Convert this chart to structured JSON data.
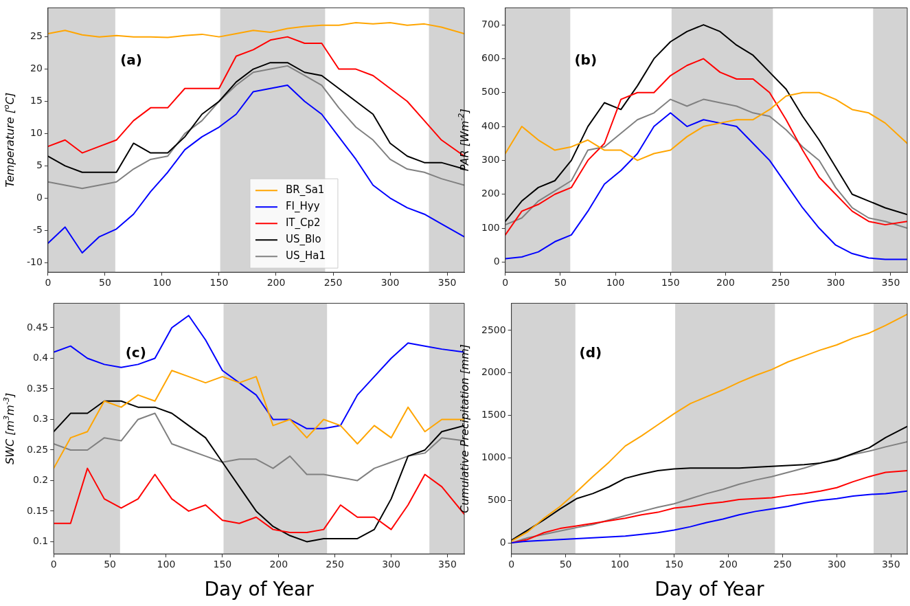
{
  "chart_data": [
    {
      "type": "line",
      "ylabel": "Temperature [$^{o}$C]",
      "annotations": [
        "(a)"
      ],
      "legend": "bottom",
      "grid": false,
      "marker": "none",
      "line_style": "solid",
      "x": [
        0,
        15,
        30,
        45,
        60,
        75,
        90,
        105,
        120,
        135,
        150,
        165,
        180,
        195,
        210,
        225,
        240,
        255,
        270,
        285,
        300,
        315,
        330,
        345,
        365
      ],
      "xlim": [
        0,
        365
      ],
      "xticks": [
        0,
        50,
        100,
        150,
        200,
        250,
        300,
        350
      ],
      "ylim": [
        -11.5,
        29.5
      ],
      "yticks": [
        -10,
        -5,
        0,
        5,
        10,
        15,
        20,
        25
      ],
      "bands": [
        {
          "axis": "x",
          "from": 0,
          "to": 59,
          "color": "#d3d3d3"
        },
        {
          "axis": "x",
          "from": 151,
          "to": 243,
          "color": "#d3d3d3"
        },
        {
          "axis": "x",
          "from": 334,
          "to": 365,
          "color": "#d3d3d3"
        }
      ],
      "series": [
        {
          "name": "BR_Sa1",
          "color": "#ffa500",
          "values": [
            25.5,
            26,
            25.3,
            25,
            25.2,
            25,
            25,
            24.9,
            25.2,
            25.4,
            25,
            25.5,
            26,
            25.7,
            26.3,
            26.6,
            26.8,
            26.8,
            27.2,
            27,
            27.2,
            26.8,
            27,
            26.5,
            25.5
          ]
        },
        {
          "name": "FI_Hyy",
          "color": "#0000ff",
          "values": [
            -7,
            -4.5,
            -8.5,
            -6,
            -4.8,
            -2.5,
            1,
            4,
            7.5,
            9.5,
            11,
            13,
            16.5,
            17,
            17.5,
            15,
            13,
            9.5,
            6,
            2,
            0,
            -1.5,
            -2.5,
            -4,
            -6
          ]
        },
        {
          "name": "IT_Cp2",
          "color": "#ff0000",
          "values": [
            8,
            9,
            7,
            8,
            9,
            12,
            14,
            14,
            17,
            17,
            17,
            22,
            23,
            24.5,
            25,
            24,
            24,
            20,
            20,
            19,
            17,
            15,
            12,
            9,
            6.5
          ]
        },
        {
          "name": "US_Blo",
          "color": "#000000",
          "values": [
            6.5,
            5,
            4,
            4,
            4,
            8.5,
            7,
            7,
            9.5,
            13,
            15,
            18,
            20,
            21,
            21,
            19.5,
            19,
            17,
            15,
            13,
            8.5,
            6.5,
            5.5,
            5.5,
            4.5
          ]
        },
        {
          "name": "US_Ha1",
          "color": "#808080",
          "values": [
            2.5,
            2,
            1.5,
            2,
            2.5,
            4.5,
            6,
            6.5,
            10,
            12,
            15,
            17.5,
            19.5,
            20,
            20.5,
            19,
            17.5,
            14,
            11,
            9,
            6,
            4.5,
            4,
            3,
            2
          ]
        }
      ]
    },
    {
      "type": "line",
      "ylabel": "PAR [Wm$^{-2}$]",
      "annotations": [
        "(b)"
      ],
      "grid": false,
      "marker": "none",
      "line_style": "solid",
      "x": [
        0,
        15,
        30,
        45,
        60,
        75,
        90,
        105,
        120,
        135,
        150,
        165,
        180,
        195,
        210,
        225,
        240,
        255,
        270,
        285,
        300,
        315,
        330,
        345,
        365
      ],
      "xlim": [
        0,
        365
      ],
      "xticks": [
        0,
        50,
        100,
        150,
        200,
        250,
        300,
        350
      ],
      "ylim": [
        -30,
        750
      ],
      "yticks": [
        0,
        100,
        200,
        300,
        400,
        500,
        600,
        700
      ],
      "bands": [
        {
          "axis": "x",
          "from": 0,
          "to": 59,
          "color": "#d3d3d3"
        },
        {
          "axis": "x",
          "from": 151,
          "to": 243,
          "color": "#d3d3d3"
        },
        {
          "axis": "x",
          "from": 334,
          "to": 365,
          "color": "#d3d3d3"
        }
      ],
      "series": [
        {
          "color": "#ffa500",
          "values": [
            320,
            400,
            360,
            330,
            340,
            360,
            330,
            330,
            300,
            320,
            330,
            370,
            400,
            410,
            420,
            420,
            450,
            490,
            500,
            500,
            480,
            450,
            440,
            410,
            350
          ]
        },
        {
          "color": "#0000ff",
          "values": [
            10,
            15,
            30,
            60,
            80,
            150,
            230,
            270,
            320,
            400,
            440,
            400,
            420,
            410,
            400,
            350,
            300,
            230,
            160,
            100,
            50,
            25,
            12,
            8,
            8
          ]
        },
        {
          "color": "#ff0000",
          "values": [
            80,
            150,
            170,
            200,
            220,
            300,
            350,
            480,
            500,
            500,
            550,
            580,
            600,
            560,
            540,
            540,
            500,
            420,
            330,
            250,
            200,
            150,
            120,
            110,
            120
          ]
        },
        {
          "color": "#000000",
          "values": [
            120,
            180,
            220,
            240,
            300,
            400,
            470,
            450,
            520,
            600,
            650,
            680,
            700,
            680,
            640,
            610,
            560,
            510,
            430,
            360,
            280,
            200,
            180,
            160,
            140
          ]
        },
        {
          "color": "#808080",
          "values": [
            110,
            130,
            180,
            210,
            240,
            330,
            340,
            380,
            420,
            440,
            480,
            460,
            480,
            470,
            460,
            440,
            430,
            390,
            340,
            300,
            220,
            160,
            130,
            120,
            100
          ]
        }
      ]
    },
    {
      "type": "line",
      "xlabel": "Day of Year",
      "ylabel": "SWC [m$^{3}$m$^{-3}$]",
      "annotations": [
        "(c)"
      ],
      "grid": false,
      "marker": "none",
      "line_style": "solid",
      "x": [
        0,
        15,
        30,
        45,
        60,
        75,
        90,
        105,
        120,
        135,
        150,
        165,
        180,
        195,
        210,
        225,
        240,
        255,
        270,
        285,
        300,
        315,
        330,
        345,
        365
      ],
      "xlim": [
        0,
        365
      ],
      "xticks": [
        0,
        50,
        100,
        150,
        200,
        250,
        300,
        350
      ],
      "ylim": [
        0.08,
        0.49
      ],
      "yticks": [
        0.1,
        0.15,
        0.2,
        0.25,
        0.3,
        0.35,
        0.4,
        0.45
      ],
      "bands": [
        {
          "axis": "x",
          "from": 0,
          "to": 59,
          "color": "#d3d3d3"
        },
        {
          "axis": "x",
          "from": 151,
          "to": 243,
          "color": "#d3d3d3"
        },
        {
          "axis": "x",
          "from": 334,
          "to": 365,
          "color": "#d3d3d3"
        }
      ],
      "series": [
        {
          "color": "#ffa500",
          "values": [
            0.22,
            0.27,
            0.28,
            0.33,
            0.32,
            0.34,
            0.33,
            0.38,
            0.37,
            0.36,
            0.37,
            0.36,
            0.37,
            0.29,
            0.3,
            0.27,
            0.3,
            0.29,
            0.26,
            0.29,
            0.27,
            0.32,
            0.28,
            0.3,
            0.3
          ]
        },
        {
          "color": "#0000ff",
          "values": [
            0.41,
            0.42,
            0.4,
            0.39,
            0.385,
            0.39,
            0.4,
            0.45,
            0.47,
            0.43,
            0.38,
            0.36,
            0.34,
            0.3,
            0.3,
            0.285,
            0.285,
            0.29,
            0.34,
            0.37,
            0.4,
            0.425,
            0.42,
            0.415,
            0.41
          ]
        },
        {
          "color": "#ff0000",
          "values": [
            0.13,
            0.13,
            0.22,
            0.17,
            0.155,
            0.17,
            0.21,
            0.17,
            0.15,
            0.16,
            0.135,
            0.13,
            0.14,
            0.12,
            0.115,
            0.115,
            0.12,
            0.16,
            0.14,
            0.14,
            0.12,
            0.16,
            0.21,
            0.19,
            0.145
          ]
        },
        {
          "color": "#000000",
          "values": [
            0.28,
            0.31,
            0.31,
            0.33,
            0.33,
            0.32,
            0.32,
            0.31,
            0.29,
            0.27,
            0.23,
            0.19,
            0.15,
            0.125,
            0.11,
            0.1,
            0.105,
            0.105,
            0.105,
            0.12,
            0.17,
            0.24,
            0.25,
            0.28,
            0.29
          ]
        },
        {
          "color": "#808080",
          "values": [
            0.26,
            0.25,
            0.25,
            0.27,
            0.265,
            0.3,
            0.31,
            0.26,
            0.25,
            0.24,
            0.23,
            0.235,
            0.235,
            0.22,
            0.24,
            0.21,
            0.21,
            0.205,
            0.2,
            0.22,
            0.23,
            0.24,
            0.245,
            0.27,
            0.265
          ]
        }
      ]
    },
    {
      "type": "line",
      "xlabel": "Day of Year",
      "ylabel": "Cumulative Precipitation [mm]",
      "annotations": [
        "(d)"
      ],
      "grid": false,
      "marker": "none",
      "line_style": "solid",
      "x": [
        0,
        15,
        30,
        45,
        60,
        75,
        90,
        105,
        120,
        135,
        150,
        165,
        180,
        195,
        210,
        225,
        240,
        255,
        270,
        285,
        300,
        315,
        330,
        345,
        365
      ],
      "xlim": [
        0,
        365
      ],
      "xticks": [
        0,
        50,
        100,
        150,
        200,
        250,
        300,
        350
      ],
      "ylim": [
        -130,
        2820
      ],
      "yticks": [
        0,
        500,
        1000,
        1500,
        2000,
        2500
      ],
      "bands": [
        {
          "axis": "x",
          "from": 0,
          "to": 59,
          "color": "#d3d3d3"
        },
        {
          "axis": "x",
          "from": 151,
          "to": 243,
          "color": "#d3d3d3"
        },
        {
          "axis": "x",
          "from": 334,
          "to": 365,
          "color": "#d3d3d3"
        }
      ],
      "series": [
        {
          "color": "#ffa500",
          "values": [
            20,
            130,
            290,
            430,
            600,
            780,
            950,
            1140,
            1260,
            1390,
            1520,
            1640,
            1720,
            1800,
            1890,
            1970,
            2040,
            2130,
            2200,
            2270,
            2330,
            2410,
            2470,
            2560,
            2690
          ]
        },
        {
          "color": "#0000ff",
          "values": [
            0,
            20,
            30,
            40,
            50,
            60,
            70,
            80,
            100,
            120,
            150,
            190,
            240,
            280,
            330,
            370,
            400,
            430,
            470,
            500,
            520,
            550,
            570,
            580,
            610
          ]
        },
        {
          "color": "#ff0000",
          "values": [
            0,
            40,
            120,
            170,
            200,
            230,
            260,
            290,
            330,
            360,
            410,
            430,
            460,
            480,
            510,
            520,
            530,
            560,
            580,
            610,
            650,
            720,
            780,
            830,
            850
          ]
        },
        {
          "color": "#000000",
          "values": [
            30,
            150,
            270,
            400,
            520,
            580,
            660,
            760,
            810,
            850,
            870,
            880,
            880,
            880,
            880,
            890,
            900,
            910,
            920,
            940,
            980,
            1050,
            1120,
            1240,
            1370
          ]
        },
        {
          "color": "#808080",
          "values": [
            0,
            60,
            100,
            140,
            180,
            215,
            270,
            320,
            370,
            420,
            460,
            520,
            580,
            630,
            690,
            740,
            780,
            830,
            880,
            940,
            990,
            1040,
            1080,
            1130,
            1190
          ]
        }
      ]
    }
  ]
}
